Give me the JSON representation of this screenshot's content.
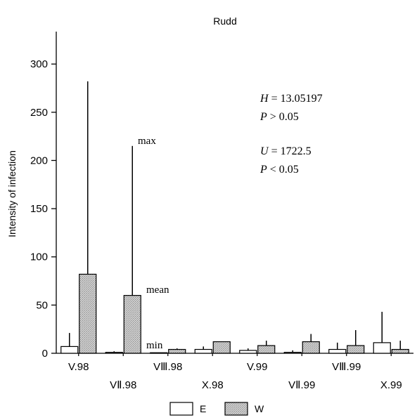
{
  "chart_data": {
    "type": "bar",
    "title": "Rudd",
    "ylabel": "Intensity of infection",
    "xlabel": "",
    "ylim": [
      0,
      330
    ],
    "yticks": [
      0,
      50,
      100,
      150,
      200,
      250,
      300
    ],
    "categories": [
      "V.98",
      "VII.98",
      "VIII.98",
      "X.98",
      "V.99",
      "VII.99",
      "VIII.99",
      "X.99"
    ],
    "tick_labels": [
      "V.98",
      "VⅡ.98",
      "VⅢ.98",
      "X.98",
      "V.99",
      "VⅡ.99",
      "VⅢ.99",
      "X.99"
    ],
    "series": [
      {
        "name": "E",
        "color": "#ffffff",
        "values": [
          7,
          1,
          0,
          4,
          3,
          1,
          4,
          11
        ],
        "max": [
          21,
          2,
          0,
          7,
          5,
          3,
          11,
          43
        ]
      },
      {
        "name": "W",
        "color": "#c8c8c8",
        "values": [
          82,
          60,
          4,
          12,
          8,
          12,
          8,
          4
        ],
        "max": [
          282,
          215,
          5,
          12,
          13,
          20,
          24,
          13
        ]
      }
    ],
    "annotations": {
      "max": "max",
      "mean": "mean",
      "min": "min"
    },
    "stats": {
      "H_label": "H",
      "H_value": " = 13.05197",
      "P1_label": "P",
      "P1_value": " > 0.05",
      "U_label": "U",
      "U_value": " = 1722.5",
      "P2_label": "P",
      "P2_value": " < 0.05"
    },
    "legend": {
      "position": "bottom-center",
      "entries": [
        "E",
        "W"
      ]
    }
  }
}
